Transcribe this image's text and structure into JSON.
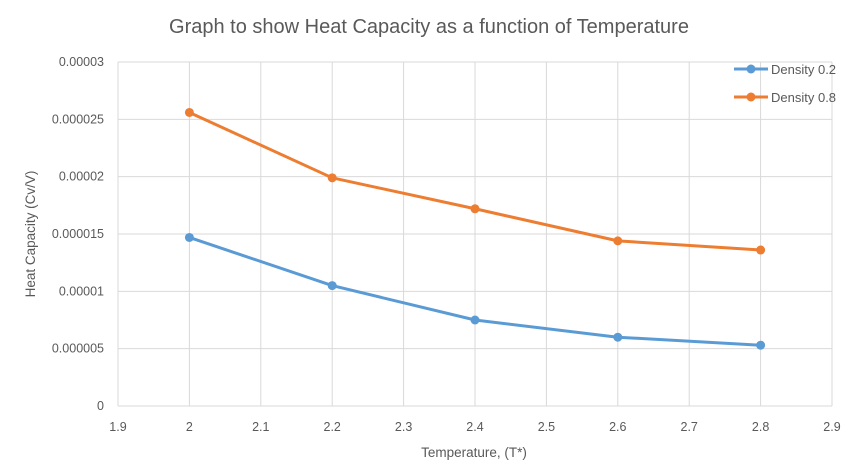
{
  "chart_data": {
    "type": "line",
    "title": "Graph to show Heat Capacity as a function of Temperature",
    "xlabel": "Temperature, (T*)",
    "ylabel": "Heat Capacity (Cv/V)",
    "xlim": [
      1.9,
      2.9
    ],
    "ylim": [
      0,
      3e-05
    ],
    "x_ticks": [
      1.9,
      2,
      2.1,
      2.2,
      2.3,
      2.4,
      2.5,
      2.6,
      2.7,
      2.8,
      2.9
    ],
    "x_tick_labels": [
      "1.9",
      "2",
      "2.1",
      "2.2",
      "2.3",
      "2.4",
      "2.5",
      "2.6",
      "2.7",
      "2.8",
      "2.9"
    ],
    "y_ticks": [
      0,
      5e-06,
      1e-05,
      1.5e-05,
      2e-05,
      2.5e-05,
      3e-05
    ],
    "y_tick_labels": [
      "0",
      "0.000005",
      "0.00001",
      "0.000015",
      "0.00002",
      "0.000025",
      "0.00003"
    ],
    "grid": true,
    "legend_position": "top-right",
    "x": [
      2.0,
      2.2,
      2.4,
      2.6,
      2.8
    ],
    "series": [
      {
        "name": "Density 0.2",
        "color": "#5b9bd5",
        "values": [
          1.47e-05,
          1.05e-05,
          7.5e-06,
          6e-06,
          5.3e-06
        ]
      },
      {
        "name": "Density 0.8",
        "color": "#ed7d31",
        "values": [
          2.56e-05,
          1.99e-05,
          1.72e-05,
          1.44e-05,
          1.36e-05
        ]
      }
    ]
  }
}
